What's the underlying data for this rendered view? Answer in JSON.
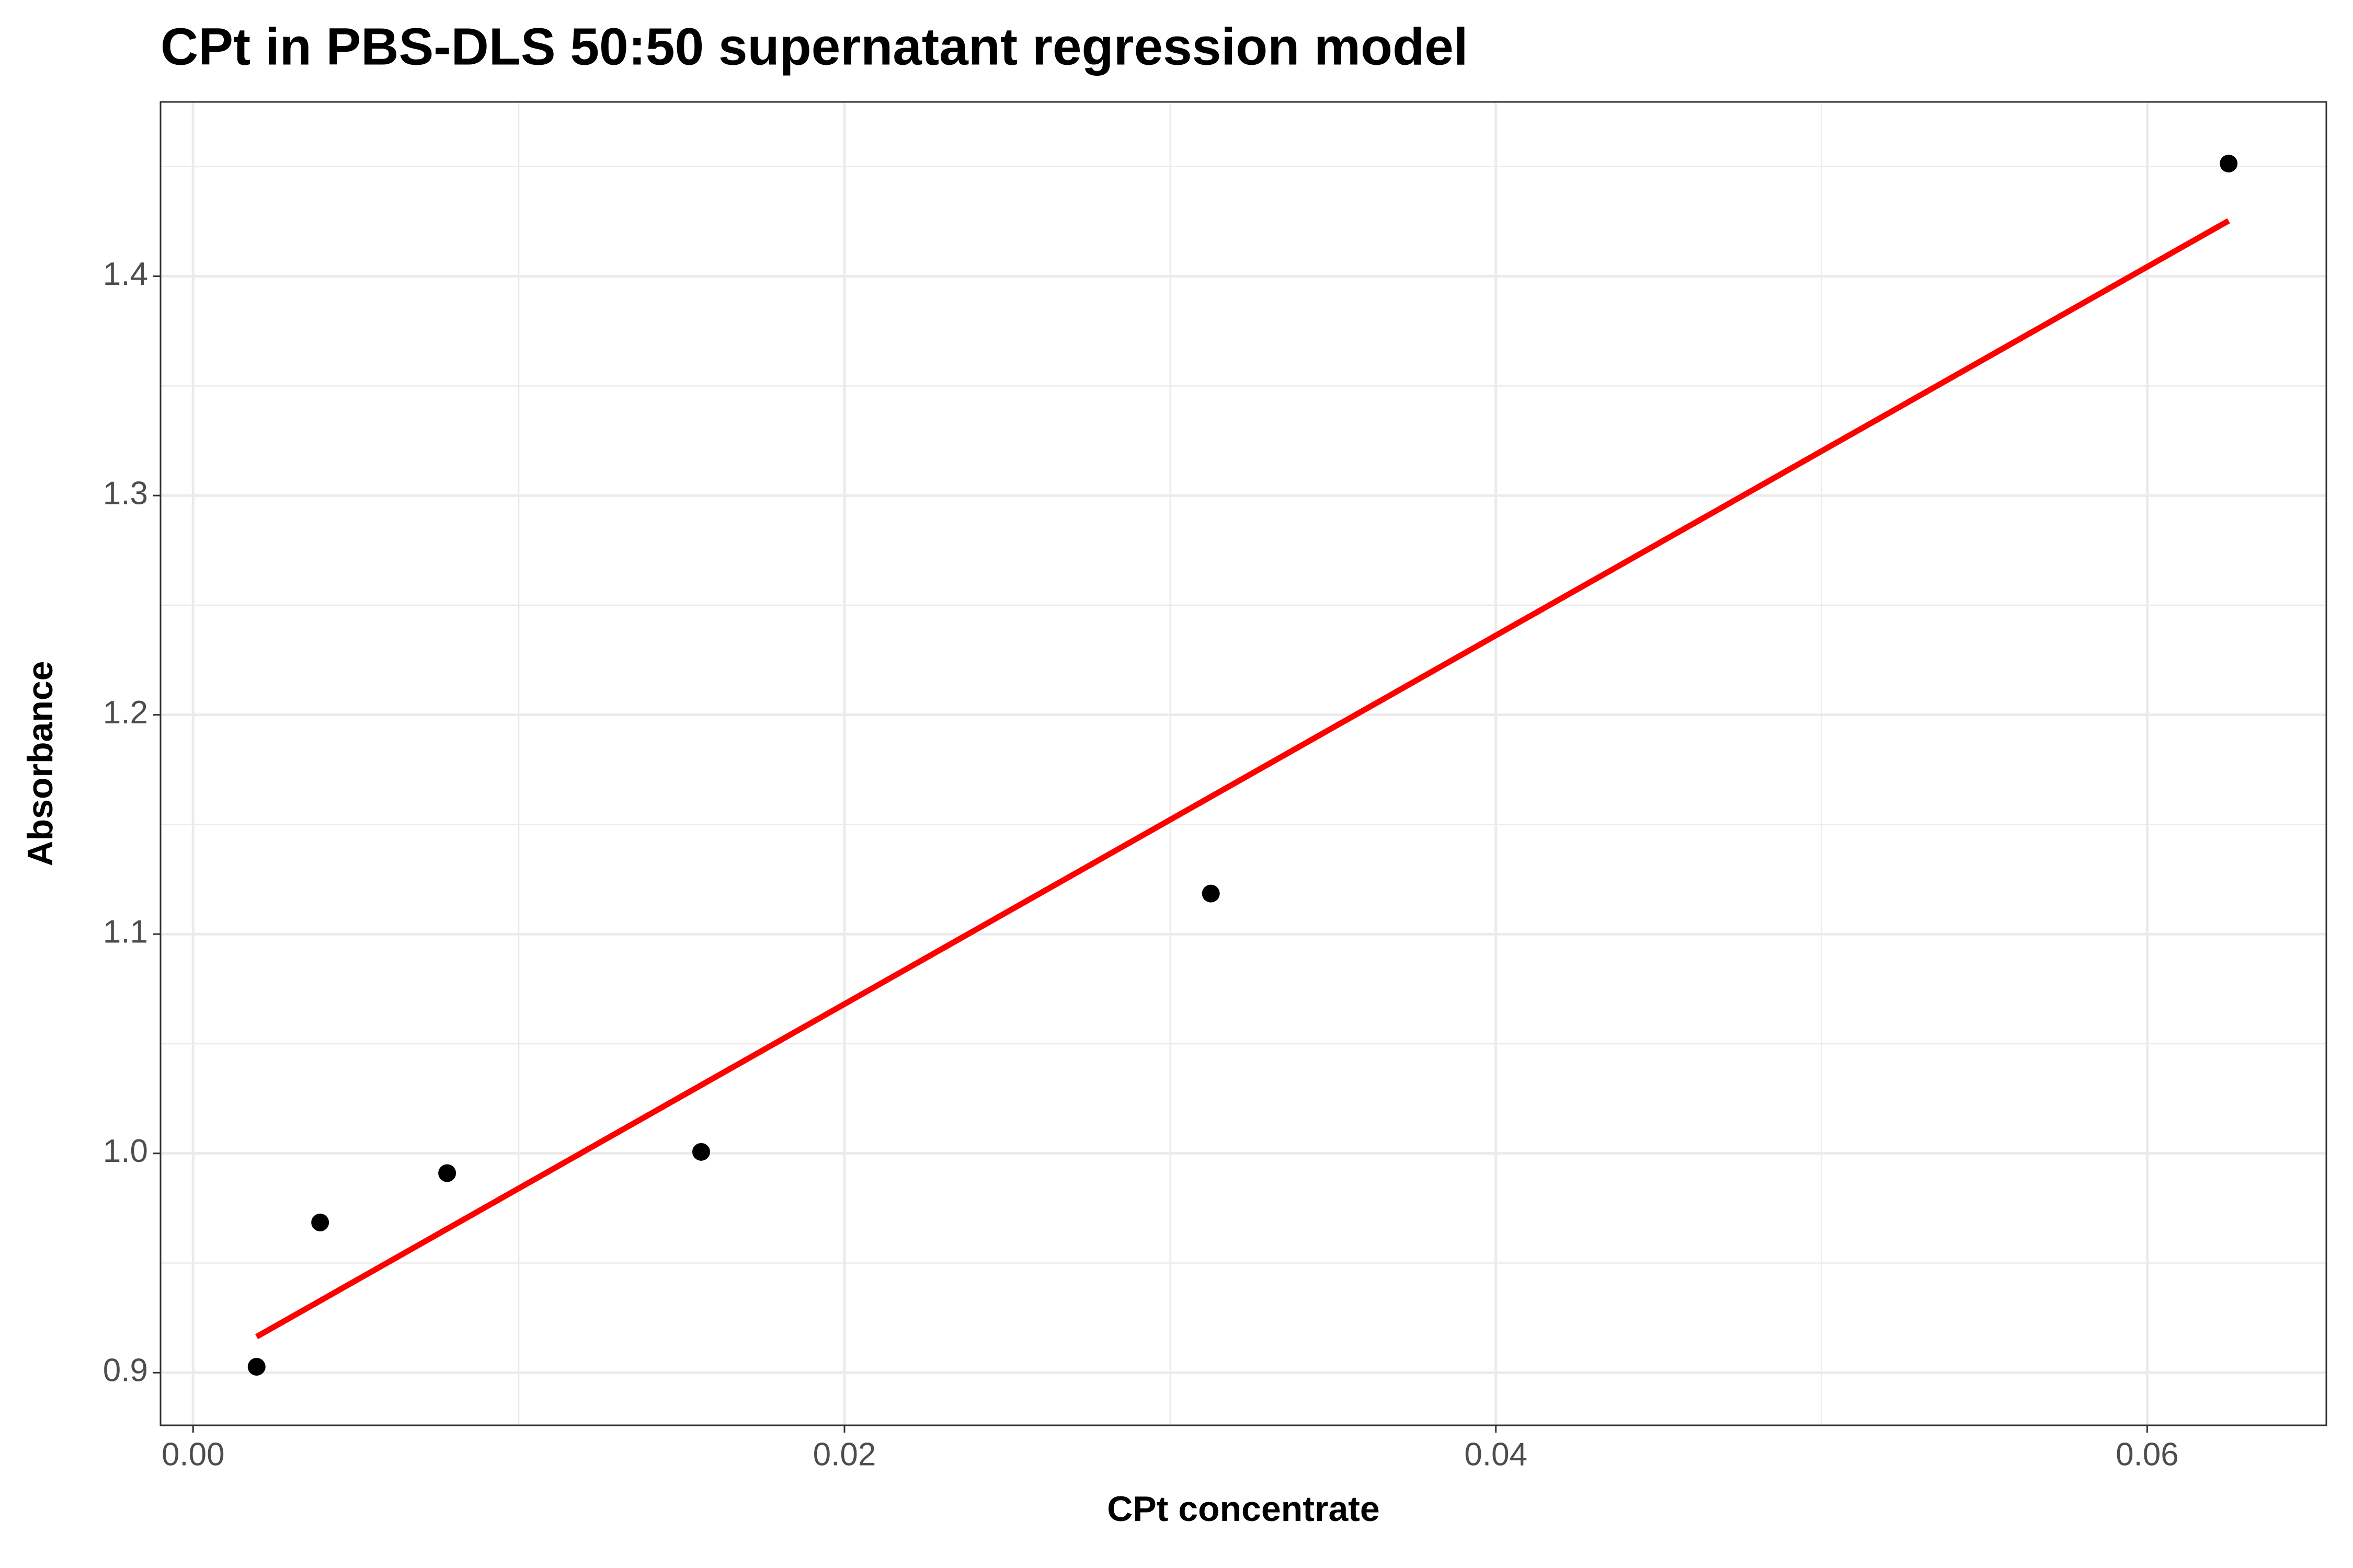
{
  "chart_data": {
    "type": "scatter",
    "title": "CPt in PBS-DLS 50:50 supernatant regression model",
    "x_label": "CPt concentrate",
    "y_label": "Absorbance",
    "points": {
      "x": [
        0.00195,
        0.0039,
        0.0078,
        0.0156,
        0.03125,
        0.0625
      ],
      "values": [
        0.9027,
        0.9685,
        0.991,
        1.0007,
        1.1185,
        1.4514
      ],
      "color": "#000000"
    },
    "fit": {
      "x": [
        0.00195,
        0.0625
      ],
      "values": [
        0.9164,
        1.4253
      ],
      "color": "#ff0000"
    },
    "xlim": [
      -0.001,
      0.0655
    ],
    "ylim": [
      0.876,
      1.4795
    ],
    "xticks": [
      {
        "value": 0,
        "label": "0.00"
      },
      0.02,
      0.04,
      0.06
    ],
    "yticks": [
      0.9,
      {
        "value": 1,
        "label": "1.0"
      },
      1.1,
      1.2,
      1.3,
      1.4
    ],
    "x_minor_grid": [
      0.01,
      0.03,
      0.05
    ],
    "y_minor_grid": [
      0.95,
      1.05,
      1.15,
      1.25,
      1.35,
      1.45
    ],
    "grid": true
  }
}
